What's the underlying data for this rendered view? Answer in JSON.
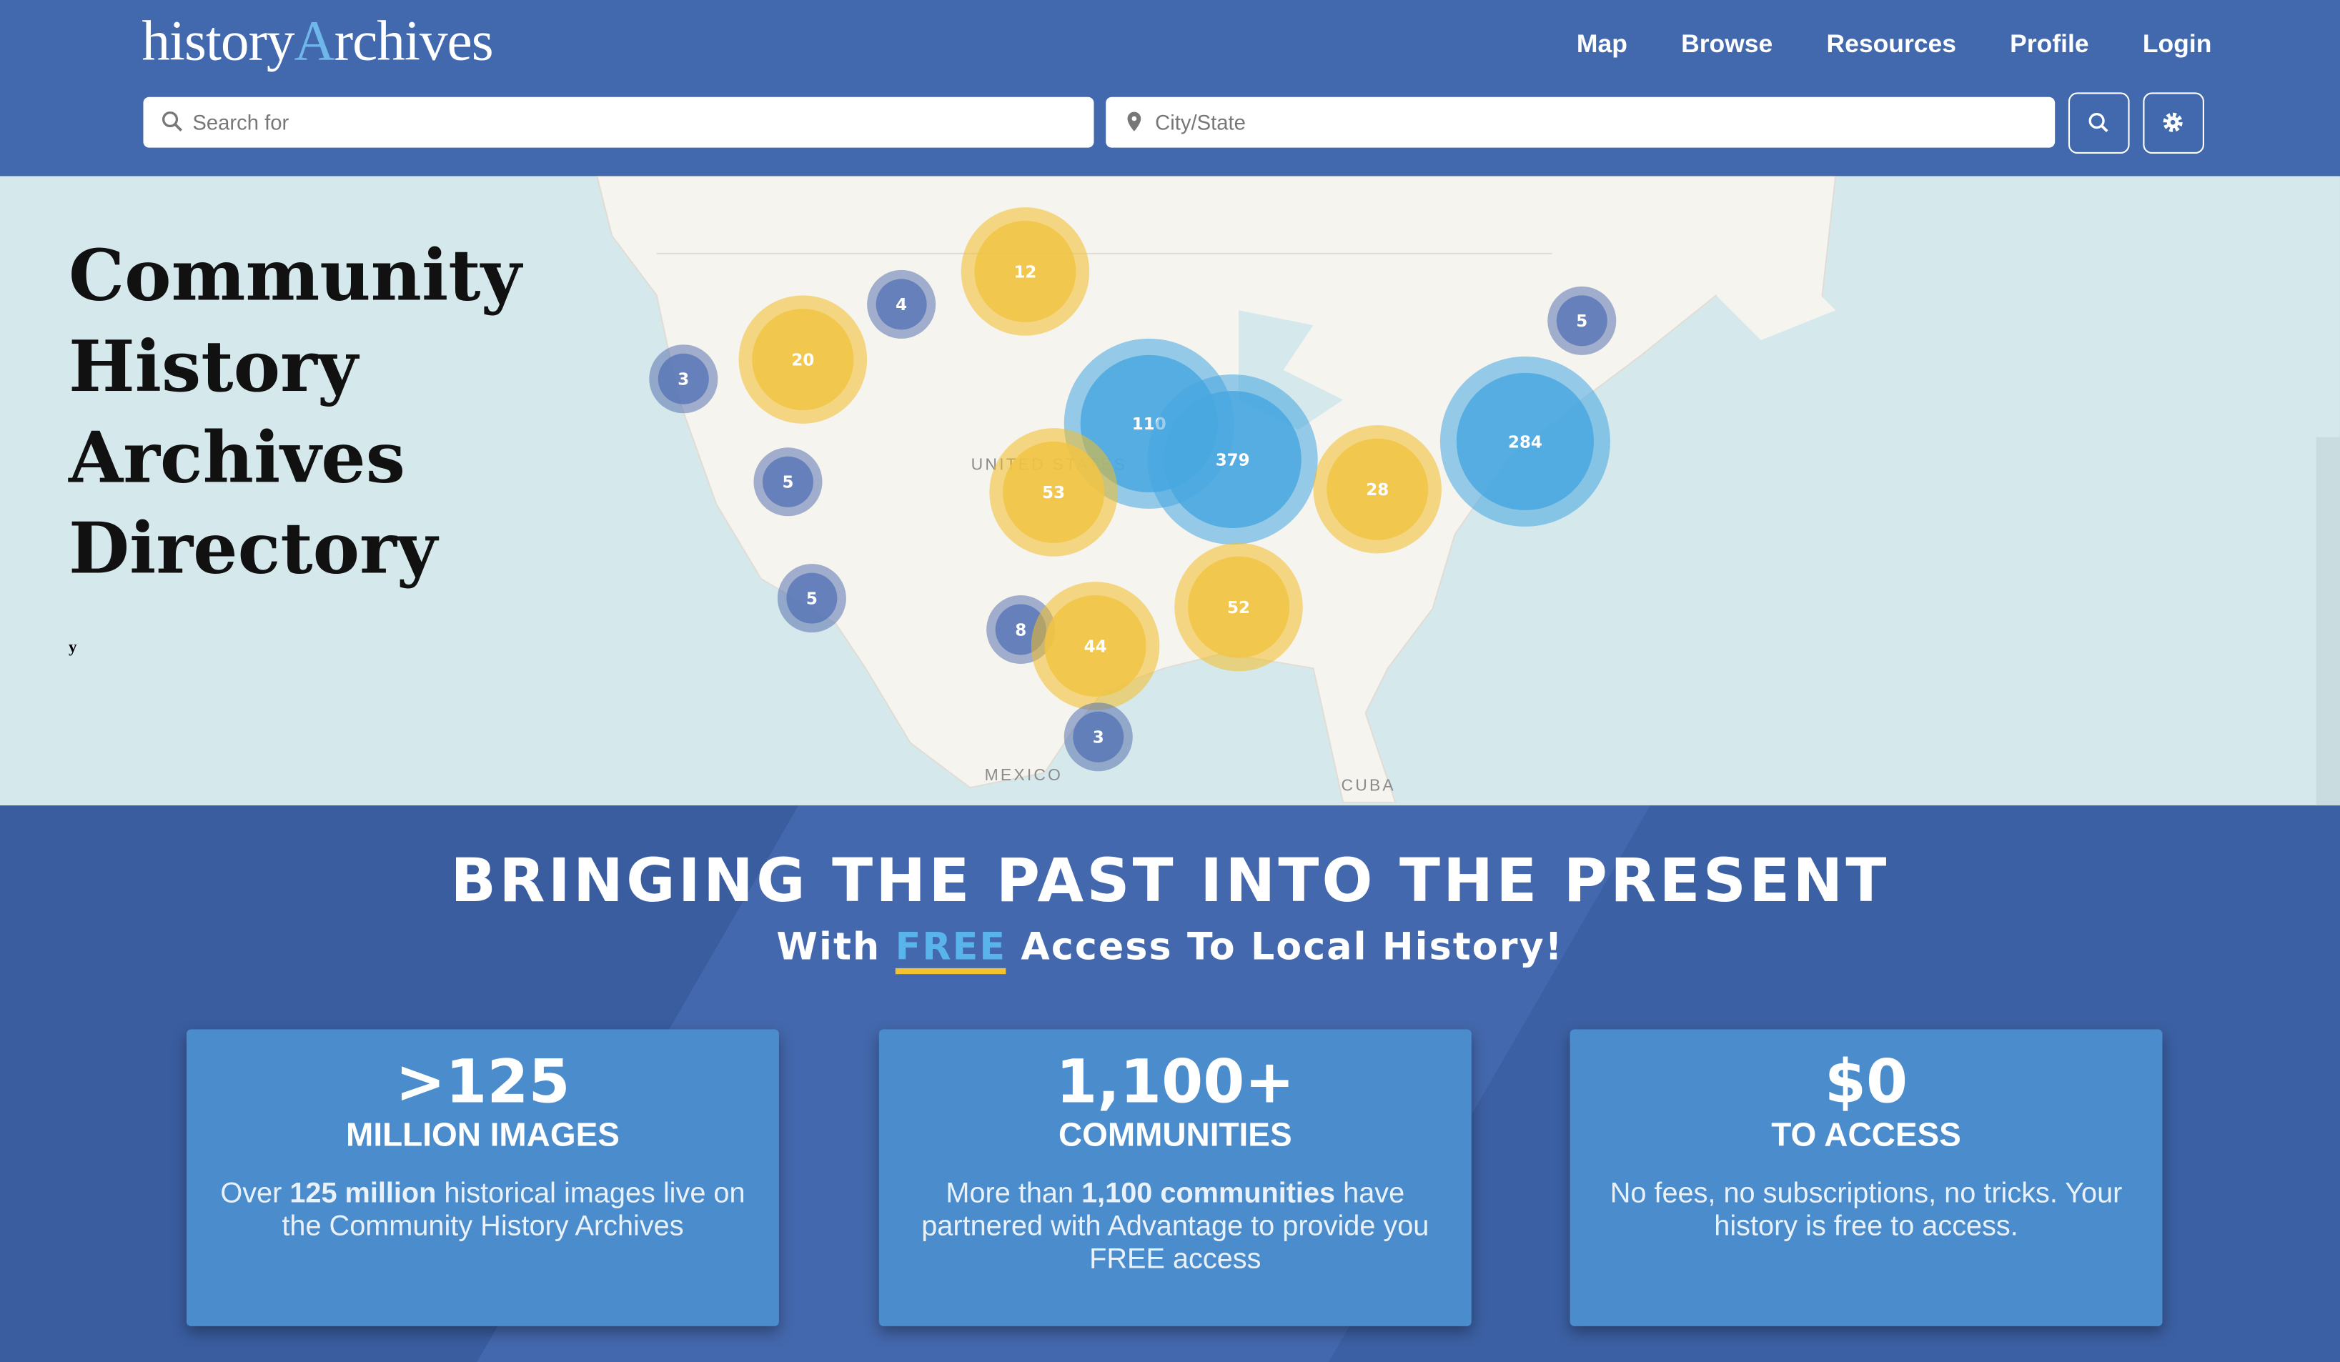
{
  "header": {
    "logo": [
      "history",
      "Archives"
    ],
    "nav": [
      "Map",
      "Browse",
      "Resources",
      "Profile",
      "Login"
    ],
    "search_placeholder": "Search for",
    "location_placeholder": "City/State"
  },
  "hero": {
    "title_lines": [
      "Community",
      "History",
      "Archives",
      "Directory"
    ],
    "stray_text": "y"
  },
  "map": {
    "labels": [
      "UNITED STATES",
      "MEXICO",
      "CUBA"
    ],
    "clusters": [
      "12",
      "4",
      "20",
      "3",
      "5",
      "110",
      "379",
      "53",
      "28",
      "284",
      "5",
      "5",
      "8",
      "44",
      "52",
      "3"
    ]
  },
  "banner": {
    "headline": "BRINGING THE PAST INTO THE PRESENT",
    "subheadline": [
      "With ",
      "FREE",
      " Access To Local History!"
    ]
  },
  "cards": [
    {
      "big": ">125",
      "sub": "MILLION IMAGES",
      "desc": [
        "Over ",
        "125 million",
        " historical images live on the Community History Archives"
      ]
    },
    {
      "big": "1,100+",
      "sub": "COMMUNITIES",
      "desc": [
        "More than ",
        "1,100 communities",
        " have partnered with Advantage to provide you FREE access"
      ]
    },
    {
      "big": "$0",
      "sub": "TO ACCESS",
      "desc": [
        "No fees, no subscriptions, no tricks. Your history is free to access."
      ]
    }
  ]
}
